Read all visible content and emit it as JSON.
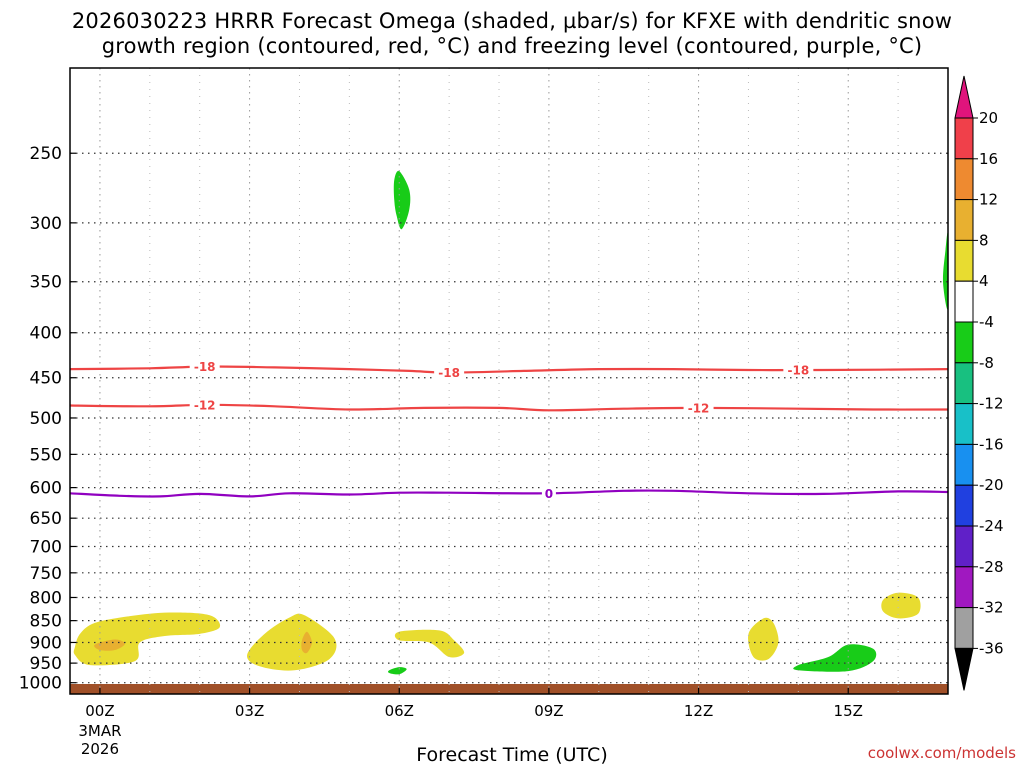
{
  "title_line1": "2026030223 HRRR Forecast Omega (shaded, µbar/s) for KFXE with dendritic snow",
  "title_line2": "growth region (contoured, red, °C) and freezing level (contoured, purple, °C)",
  "xaxis_title": "Forecast Time (UTC)",
  "credit": "coolwx.com/models",
  "chart_data": {
    "type": "time-height contour",
    "station": "KFXE",
    "model": "HRRR",
    "init": "2026030223",
    "x_ticks": [
      {
        "hour": 0,
        "label": "00Z"
      },
      {
        "hour": 3,
        "label": "03Z"
      },
      {
        "hour": 6,
        "label": "06Z"
      },
      {
        "hour": 9,
        "label": "09Z"
      },
      {
        "hour": 12,
        "label": "12Z"
      },
      {
        "hour": 15,
        "label": "15Z"
      }
    ],
    "x_date_label": [
      "3MAR",
      "2026"
    ],
    "x_range_hours": [
      -0.6,
      17.0
    ],
    "y_ticks_hPa": [
      250,
      300,
      350,
      400,
      450,
      500,
      550,
      600,
      650,
      700,
      750,
      800,
      850,
      900,
      950,
      1000
    ],
    "y_range_hPa": [
      200,
      1030
    ],
    "y_scale": "log-pressure (inverted)",
    "grid": true,
    "colorbar": {
      "labels": [
        "20",
        "16",
        "12",
        "8",
        "4",
        "-4",
        "-8",
        "-12",
        "-16",
        "-20",
        "-24",
        "-28",
        "-32",
        "-36"
      ],
      "bins": [
        {
          "lo": 16,
          "hi": 20,
          "color": "#f0404a"
        },
        {
          "lo": 12,
          "hi": 16,
          "color": "#ee8a30"
        },
        {
          "lo": 8,
          "hi": 12,
          "color": "#e8b030"
        },
        {
          "lo": 4,
          "hi": 8,
          "color": "#e8dc30"
        },
        {
          "lo": -4,
          "hi": 4,
          "color": "#ffffff"
        },
        {
          "lo": -8,
          "hi": -4,
          "color": "#18cc18"
        },
        {
          "lo": -12,
          "hi": -8,
          "color": "#18c080"
        },
        {
          "lo": -16,
          "hi": -12,
          "color": "#18c0c8"
        },
        {
          "lo": -20,
          "hi": -16,
          "color": "#1890f0"
        },
        {
          "lo": -24,
          "hi": -20,
          "color": "#2040e0"
        },
        {
          "lo": -28,
          "hi": -24,
          "color": "#6020c8"
        },
        {
          "lo": -32,
          "hi": -28,
          "color": "#a018c0"
        },
        {
          "lo": -36,
          "hi": -32,
          "color": "#a0a0a0"
        }
      ],
      "top_arrow_color": "#e0147c",
      "bottom_arrow_color": "#000000"
    },
    "contours": [
      {
        "name": "-18",
        "color": "#ee4444",
        "label": "-18",
        "points": [
          [
            -0.6,
            440
          ],
          [
            1,
            439
          ],
          [
            2.2,
            437
          ],
          [
            3.5,
            438
          ],
          [
            5,
            440
          ],
          [
            6.2,
            442
          ],
          [
            7,
            444
          ],
          [
            8.5,
            442
          ],
          [
            10,
            440
          ],
          [
            11.5,
            440
          ],
          [
            13,
            441
          ],
          [
            14.5,
            441
          ],
          [
            17,
            440
          ]
        ],
        "label_hours": [
          2.1,
          7.0,
          14.0
        ]
      },
      {
        "name": "-12",
        "color": "#ee4444",
        "label": "-12",
        "points": [
          [
            -0.6,
            484
          ],
          [
            1,
            485
          ],
          [
            2.2,
            483
          ],
          [
            3.5,
            485
          ],
          [
            5,
            489
          ],
          [
            6.5,
            487
          ],
          [
            8,
            487
          ],
          [
            9,
            490
          ],
          [
            10.5,
            488
          ],
          [
            12,
            487
          ],
          [
            14,
            488
          ],
          [
            15.5,
            489
          ],
          [
            17,
            489
          ]
        ],
        "label_hours": [
          2.1,
          12.0
        ]
      },
      {
        "name": "0",
        "color": "#9000c0",
        "label": "0",
        "points": [
          [
            -0.6,
            609
          ],
          [
            0.4,
            613
          ],
          [
            1.2,
            614
          ],
          [
            2,
            610
          ],
          [
            3,
            614
          ],
          [
            3.8,
            609
          ],
          [
            5,
            611
          ],
          [
            6,
            608
          ],
          [
            7,
            608
          ],
          [
            9,
            609
          ],
          [
            10.5,
            605
          ],
          [
            11.5,
            605
          ],
          [
            13,
            609
          ],
          [
            14.5,
            610
          ],
          [
            16,
            606
          ],
          [
            17,
            607
          ]
        ],
        "label_hours": [
          9.0
        ]
      }
    ],
    "omega_regions": [
      {
        "color": "#e8dc30",
        "value_bin": "4..8",
        "points": [
          [
            -0.5,
            910
          ],
          [
            -0.4,
            880
          ],
          [
            -0.1,
            855
          ],
          [
            0.6,
            840
          ],
          [
            1.4,
            832
          ],
          [
            2.2,
            838
          ],
          [
            2.4,
            865
          ],
          [
            2.0,
            880
          ],
          [
            1.3,
            885
          ],
          [
            0.8,
            900
          ],
          [
            0.7,
            945
          ],
          [
            -0.2,
            955
          ],
          [
            -0.5,
            930
          ]
        ]
      },
      {
        "color": "#e8b030",
        "value_bin": "8..12",
        "points": [
          [
            -0.1,
            905
          ],
          [
            0.3,
            893
          ],
          [
            0.5,
            903
          ],
          [
            0.3,
            918
          ],
          [
            0.0,
            918
          ]
        ]
      },
      {
        "color": "#e8dc30",
        "value_bin": "4..8",
        "points": [
          [
            2.95,
            930
          ],
          [
            3.3,
            880
          ],
          [
            3.8,
            843
          ],
          [
            4.1,
            838
          ],
          [
            4.7,
            890
          ],
          [
            4.6,
            940
          ],
          [
            3.9,
            968
          ],
          [
            3.2,
            958
          ]
        ]
      },
      {
        "color": "#e8b030",
        "value_bin": "8..12",
        "points": [
          [
            4.05,
            895
          ],
          [
            4.15,
            875
          ],
          [
            4.25,
            900
          ],
          [
            4.15,
            925
          ],
          [
            4.05,
            918
          ]
        ]
      },
      {
        "color": "#e8dc30",
        "value_bin": "4..8",
        "points": [
          [
            6.0,
            875
          ],
          [
            6.8,
            872
          ],
          [
            7.1,
            895
          ],
          [
            7.3,
            925
          ],
          [
            7.0,
            935
          ],
          [
            6.6,
            900
          ],
          [
            6.0,
            895
          ]
        ]
      },
      {
        "color": "#e8dc30",
        "value_bin": "4..8",
        "points": [
          [
            13.0,
            880
          ],
          [
            13.3,
            845
          ],
          [
            13.5,
            855
          ],
          [
            13.6,
            900
          ],
          [
            13.4,
            940
          ],
          [
            13.1,
            935
          ]
        ]
      },
      {
        "color": "#e8dc30",
        "value_bin": "4..8",
        "points": [
          [
            15.7,
            805
          ],
          [
            16.0,
            790
          ],
          [
            16.4,
            800
          ],
          [
            16.4,
            835
          ],
          [
            16.0,
            845
          ],
          [
            15.7,
            830
          ]
        ]
      },
      {
        "color": "#18cc18",
        "value_bin": "-8..-4",
        "points": [
          [
            5.9,
            283
          ],
          [
            5.9,
            268
          ],
          [
            6.0,
            262
          ],
          [
            6.2,
            275
          ],
          [
            6.2,
            290
          ],
          [
            6.05,
            305
          ],
          [
            5.95,
            295
          ]
        ]
      },
      {
        "color": "#18cc18",
        "value_bin": "-8..-4",
        "points": [
          [
            16.95,
            322
          ],
          [
            17.0,
            310
          ],
          [
            17.0,
            375
          ],
          [
            16.9,
            350
          ]
        ]
      },
      {
        "color": "#18cc18",
        "value_bin": "-8..-4",
        "points": [
          [
            14.0,
            955
          ],
          [
            14.6,
            935
          ],
          [
            15.0,
            905
          ],
          [
            15.5,
            915
          ],
          [
            15.5,
            945
          ],
          [
            15.0,
            970
          ],
          [
            14.0,
            968
          ]
        ]
      },
      {
        "color": "#18cc18",
        "value_bin": "-8..-4",
        "points": [
          [
            5.8,
            968
          ],
          [
            6.0,
            960
          ],
          [
            6.15,
            965
          ],
          [
            6.0,
            978
          ],
          [
            5.8,
            975
          ]
        ]
      }
    ],
    "ground_color": "#a05028"
  }
}
